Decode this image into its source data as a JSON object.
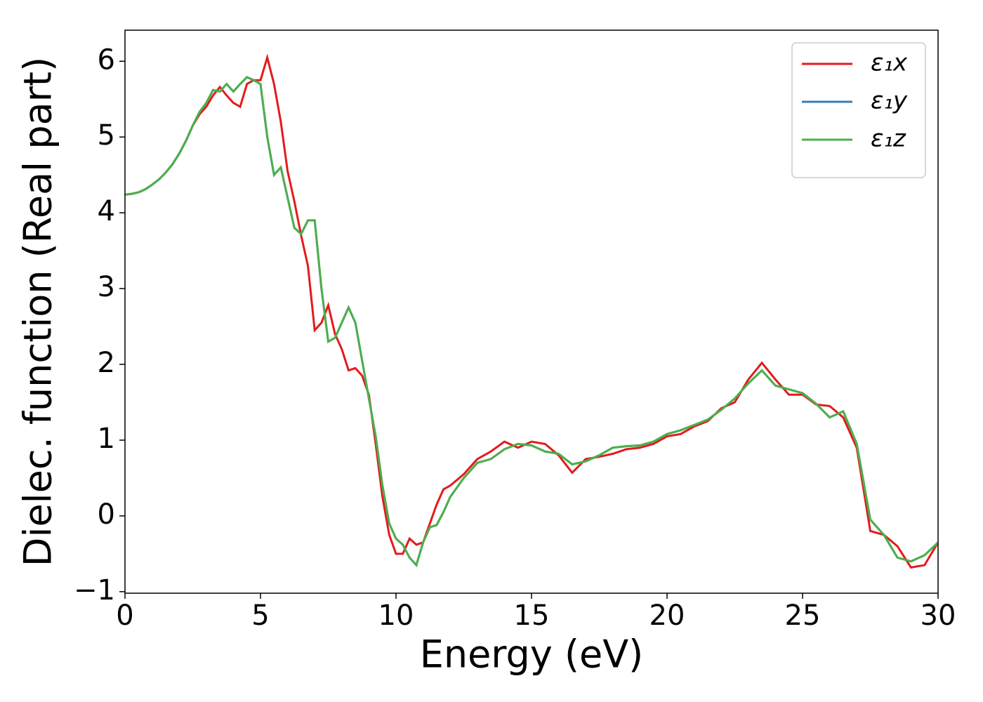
{
  "chart_data": {
    "type": "line",
    "xlabel": "Energy (eV)",
    "ylabel": "Dielec. function (Real part)",
    "x": [
      0,
      0.25,
      0.5,
      0.75,
      1,
      1.25,
      1.5,
      1.75,
      2,
      2.25,
      2.5,
      2.75,
      3,
      3.25,
      3.5,
      3.75,
      4,
      4.25,
      4.5,
      4.75,
      5,
      5.25,
      5.5,
      5.75,
      6,
      6.25,
      6.5,
      6.75,
      7,
      7.25,
      7.5,
      7.75,
      8,
      8.25,
      8.5,
      8.75,
      9,
      9.25,
      9.5,
      9.75,
      10,
      10.25,
      10.5,
      10.75,
      11,
      11.25,
      11.5,
      11.75,
      12,
      12.5,
      13,
      13.5,
      14,
      14.5,
      15,
      15.5,
      16,
      16.5,
      17,
      17.5,
      18,
      18.5,
      19,
      19.5,
      20,
      20.5,
      21,
      21.5,
      22,
      22.5,
      23,
      23.5,
      24,
      24.5,
      25,
      25.5,
      26,
      26.5,
      27,
      27.5,
      28,
      28.5,
      29,
      29.5,
      30
    ],
    "series": [
      {
        "name": "ε₁x",
        "color": "#e41a1c",
        "values": [
          4.24,
          4.25,
          4.27,
          4.31,
          4.37,
          4.44,
          4.53,
          4.64,
          4.78,
          4.95,
          5.15,
          5.3,
          5.4,
          5.55,
          5.66,
          5.55,
          5.45,
          5.4,
          5.7,
          5.75,
          5.75,
          6.05,
          5.7,
          5.2,
          4.55,
          4.15,
          3.7,
          3.3,
          2.45,
          2.55,
          2.78,
          2.4,
          2.2,
          1.92,
          1.95,
          1.85,
          1.6,
          0.95,
          0.25,
          -0.25,
          -0.5,
          -0.5,
          -0.3,
          -0.38,
          -0.35,
          -0.1,
          0.15,
          0.35,
          0.4,
          0.55,
          0.75,
          0.85,
          0.98,
          0.9,
          0.98,
          0.95,
          0.8,
          0.57,
          0.75,
          0.78,
          0.82,
          0.88,
          0.9,
          0.95,
          1.05,
          1.08,
          1.18,
          1.25,
          1.42,
          1.5,
          1.8,
          2.02,
          1.8,
          1.6,
          1.6,
          1.47,
          1.45,
          1.3,
          0.9,
          -0.2,
          -0.25,
          -0.4,
          -0.68,
          -0.65,
          -0.35
        ]
      },
      {
        "name": "ε₁y",
        "color": "#377eb8",
        "values": [
          4.24,
          4.25,
          4.27,
          4.31,
          4.37,
          4.44,
          4.53,
          4.64,
          4.78,
          4.95,
          5.15,
          5.33,
          5.45,
          5.62,
          5.6,
          5.7,
          5.6,
          5.7,
          5.79,
          5.75,
          5.7,
          5.0,
          4.5,
          4.6,
          4.2,
          3.8,
          3.72,
          3.9,
          3.9,
          3.0,
          2.3,
          2.35,
          2.55,
          2.75,
          2.55,
          2.05,
          1.55,
          1.05,
          0.4,
          -0.1,
          -0.3,
          -0.38,
          -0.55,
          -0.65,
          -0.35,
          -0.15,
          -0.12,
          0.05,
          0.25,
          0.5,
          0.7,
          0.75,
          0.88,
          0.95,
          0.93,
          0.85,
          0.82,
          0.68,
          0.72,
          0.8,
          0.9,
          0.92,
          0.93,
          0.98,
          1.08,
          1.13,
          1.2,
          1.27,
          1.4,
          1.55,
          1.75,
          1.92,
          1.72,
          1.67,
          1.62,
          1.48,
          1.3,
          1.38,
          0.95,
          -0.05,
          -0.25,
          -0.55,
          -0.6,
          -0.52,
          -0.35
        ]
      },
      {
        "name": "ε₁z",
        "color": "#4daf4a",
        "values": [
          4.24,
          4.25,
          4.27,
          4.31,
          4.37,
          4.44,
          4.53,
          4.64,
          4.78,
          4.95,
          5.15,
          5.33,
          5.45,
          5.62,
          5.6,
          5.7,
          5.6,
          5.7,
          5.79,
          5.75,
          5.7,
          5.0,
          4.5,
          4.6,
          4.2,
          3.8,
          3.72,
          3.9,
          3.9,
          3.0,
          2.3,
          2.35,
          2.55,
          2.75,
          2.55,
          2.05,
          1.55,
          1.05,
          0.4,
          -0.1,
          -0.3,
          -0.38,
          -0.55,
          -0.65,
          -0.35,
          -0.15,
          -0.12,
          0.05,
          0.25,
          0.5,
          0.7,
          0.75,
          0.88,
          0.95,
          0.93,
          0.85,
          0.82,
          0.68,
          0.72,
          0.8,
          0.9,
          0.92,
          0.93,
          0.98,
          1.08,
          1.13,
          1.2,
          1.27,
          1.4,
          1.55,
          1.75,
          1.92,
          1.72,
          1.67,
          1.62,
          1.48,
          1.3,
          1.38,
          0.95,
          -0.05,
          -0.25,
          -0.55,
          -0.6,
          -0.52,
          -0.35
        ]
      }
    ],
    "xlim": [
      0,
      30
    ],
    "xticks": [
      0,
      5,
      10,
      15,
      20,
      25,
      30
    ],
    "ylim": [
      -1.02,
      6.41
    ],
    "yticks": [
      {
        "value": -1,
        "label": "−1"
      },
      0,
      1,
      2,
      3,
      4,
      5,
      6
    ],
    "legend": "upper right",
    "grid": false
  }
}
